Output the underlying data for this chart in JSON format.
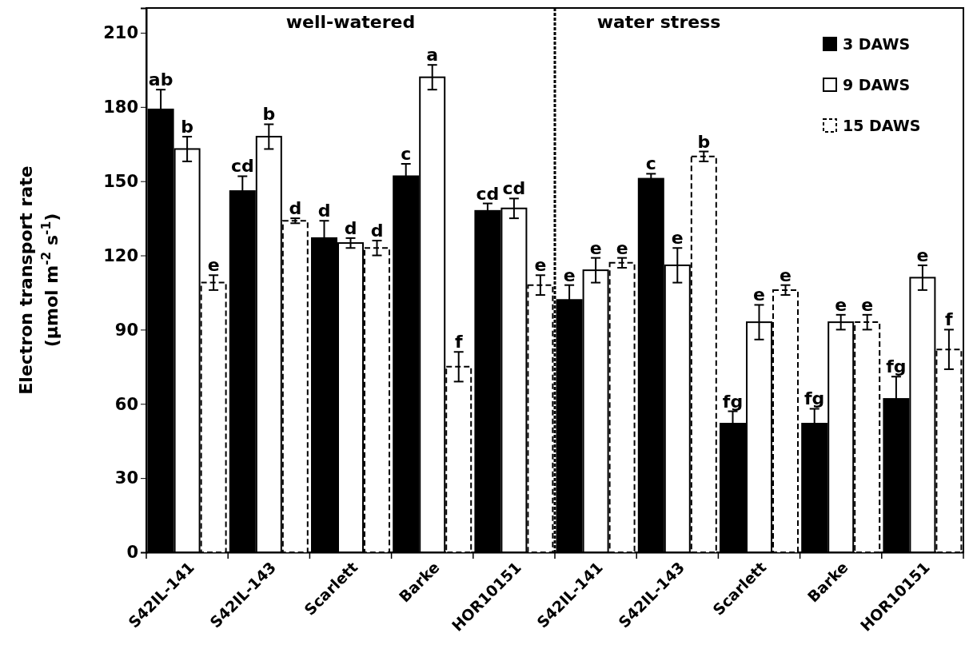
{
  "chart_data": {
    "type": "bar",
    "categories": [
      "S42IL-141",
      "S42IL-143",
      "Scarlett",
      "Barke",
      "HOR10151",
      "S42IL-141",
      "S42IL-143",
      "Scarlett",
      "Barke",
      "HOR10151"
    ],
    "ylabel": "Electron transport rate\n(µmol m$^{-2}$ s$^{-1}$)",
    "ylim": [
      0,
      220
    ],
    "yticks": [
      0,
      30,
      60,
      90,
      120,
      150,
      180,
      210
    ],
    "annotations": [
      "well-watered",
      "water stress"
    ],
    "legend": "top right",
    "grid": false,
    "series": [
      {
        "name": "3 DAWS",
        "color": "#000000",
        "values": [
          179,
          146,
          127,
          152,
          138,
          102,
          151,
          52,
          52,
          62
        ],
        "errors": [
          8,
          6,
          7,
          5,
          3,
          6,
          2,
          5,
          6,
          9
        ],
        "value_labels": [
          "ab",
          "cd",
          "d",
          "c",
          "cd",
          "e",
          "c",
          "fg",
          "fg",
          "fg"
        ]
      },
      {
        "name": "9 DAWS",
        "color": "#ffffff",
        "values": [
          163,
          168,
          125,
          192,
          139,
          114,
          116,
          93,
          93,
          111
        ],
        "errors": [
          5,
          5,
          2,
          5,
          4,
          5,
          7,
          7,
          3,
          5
        ],
        "value_labels": [
          "b",
          "b",
          "d",
          "a",
          "cd",
          "e",
          "e",
          "e",
          "e",
          "e"
        ]
      },
      {
        "name": "15 DAWS",
        "color": "#ffffff",
        "line_style": "dashed",
        "values": [
          109,
          134,
          123,
          75,
          108,
          117,
          160,
          106,
          93,
          82
        ],
        "errors": [
          3,
          1,
          3,
          6,
          4,
          2,
          2,
          2,
          3,
          8
        ],
        "value_labels": [
          "e",
          "d",
          "d",
          "f",
          "e",
          "e",
          "b",
          "e",
          "e",
          "f"
        ]
      }
    ]
  }
}
